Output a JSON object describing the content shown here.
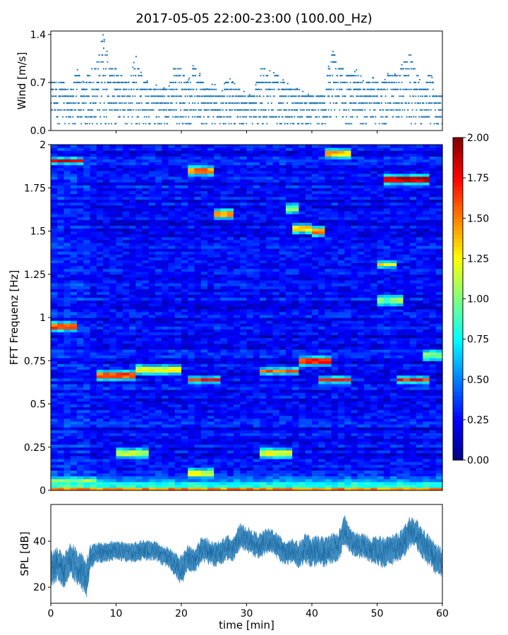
{
  "title": "2017-05-05 22:00-23:00 (100.00_Hz)",
  "chart_data": [
    {
      "type": "scatter",
      "panel": "wind",
      "ylabel": "Wind [m/s]",
      "xlim": [
        0,
        60
      ],
      "ylim": [
        0,
        1.45
      ],
      "yticks": [
        0,
        0.7,
        1.4
      ],
      "ytick_labels": [
        "0.0",
        "0.7",
        "1.4"
      ],
      "y_levels": [
        0.1,
        0.2,
        0.3,
        0.4,
        0.5,
        0.6,
        0.7,
        0.8,
        0.9,
        1.0,
        1.1,
        1.2,
        1.3,
        1.4
      ],
      "envelope": {
        "x": [
          0,
          2,
          3,
          4,
          5,
          6,
          7,
          8,
          9,
          10,
          12,
          13,
          14,
          15,
          18,
          19,
          20,
          21,
          22,
          24,
          25,
          26,
          27,
          28,
          29,
          31,
          32,
          33,
          35,
          36,
          38,
          40,
          42,
          43,
          44,
          45,
          46,
          47,
          48,
          50,
          51,
          52,
          53,
          54,
          55,
          56,
          57,
          58,
          59,
          60
        ],
        "y": [
          0.8,
          0.7,
          0.6,
          0.9,
          0.7,
          0.9,
          1.0,
          1.4,
          1.0,
          0.9,
          0.7,
          1.1,
          0.8,
          0.7,
          0.6,
          1.0,
          0.9,
          0.7,
          1.0,
          0.6,
          0.7,
          0.5,
          0.8,
          0.7,
          0.6,
          0.5,
          0.9,
          0.9,
          0.8,
          0.7,
          0.6,
          0.5,
          0.6,
          1.2,
          1.0,
          0.9,
          0.8,
          0.9,
          0.7,
          0.8,
          0.7,
          0.9,
          0.8,
          1.0,
          1.2,
          0.9,
          0.6,
          0.9,
          0.6,
          0.5
        ]
      },
      "min_envelope": [
        0.1,
        0.0
      ]
    },
    {
      "type": "heatmap",
      "panel": "spectrogram",
      "ylabel": "FFT Frequenz [Hz]",
      "xlim": [
        0,
        60
      ],
      "ylim": [
        0,
        2
      ],
      "yticks": [
        0,
        0.25,
        0.5,
        0.75,
        1,
        1.25,
        1.5,
        1.75,
        2
      ],
      "ytick_labels": [
        "0",
        "0.25",
        "0.5",
        "0.75",
        "1",
        "1.25",
        "1.5",
        "1.75",
        "2"
      ],
      "colormap": "jet",
      "color_range": [
        0,
        2
      ],
      "colorbar_ticks": [
        "0.00",
        "0.25",
        "0.50",
        "0.75",
        "1.00",
        "1.25",
        "1.50",
        "1.75",
        "2.00"
      ],
      "background_level": 0.25,
      "highlights": [
        {
          "t0": 0,
          "t1": 5,
          "f": 1.91,
          "v": 1.8
        },
        {
          "t0": 0,
          "t1": 4,
          "f": 0.95,
          "v": 1.6
        },
        {
          "t0": 0,
          "t1": 60,
          "f": 0.01,
          "v": 1.5
        },
        {
          "t0": 0,
          "t1": 7,
          "f": 0.06,
          "v": 1.1
        },
        {
          "t0": 7,
          "t1": 13,
          "f": 0.67,
          "v": 1.6
        },
        {
          "t0": 13,
          "t1": 20,
          "f": 0.7,
          "v": 1.2
        },
        {
          "t0": 10,
          "t1": 15,
          "f": 0.22,
          "v": 1.1
        },
        {
          "t0": 21,
          "t1": 25,
          "f": 1.85,
          "v": 1.5
        },
        {
          "t0": 21,
          "t1": 26,
          "f": 0.64,
          "v": 1.7
        },
        {
          "t0": 21,
          "t1": 25,
          "f": 0.1,
          "v": 1.2
        },
        {
          "t0": 25,
          "t1": 28,
          "f": 1.6,
          "v": 1.5
        },
        {
          "t0": 32,
          "t1": 38,
          "f": 0.69,
          "v": 1.6
        },
        {
          "t0": 32,
          "t1": 37,
          "f": 0.22,
          "v": 1.2
        },
        {
          "t0": 36,
          "t1": 38,
          "f": 1.63,
          "v": 1.0
        },
        {
          "t0": 37,
          "t1": 40,
          "f": 1.52,
          "v": 1.3
        },
        {
          "t0": 40,
          "t1": 42,
          "f": 1.5,
          "v": 1.5
        },
        {
          "t0": 38,
          "t1": 43,
          "f": 0.75,
          "v": 1.7
        },
        {
          "t0": 41,
          "t1": 46,
          "f": 0.64,
          "v": 1.8
        },
        {
          "t0": 42,
          "t1": 46,
          "f": 1.95,
          "v": 1.4
        },
        {
          "t0": 50,
          "t1": 53,
          "f": 1.31,
          "v": 1.3
        },
        {
          "t0": 50,
          "t1": 54,
          "f": 1.1,
          "v": 1.0
        },
        {
          "t0": 51,
          "t1": 58,
          "f": 1.8,
          "v": 1.9
        },
        {
          "t0": 53,
          "t1": 58,
          "f": 0.64,
          "v": 1.7
        },
        {
          "t0": 57,
          "t1": 60,
          "f": 0.78,
          "v": 1.0
        }
      ]
    },
    {
      "type": "line",
      "panel": "spl",
      "ylabel": "SPL [dB]",
      "xlabel": "time [min]",
      "xlim": [
        0,
        60
      ],
      "ylim": [
        13,
        56
      ],
      "yticks": [
        20,
        40
      ],
      "ytick_labels": [
        "20",
        "40"
      ],
      "xticks": [
        0,
        10,
        20,
        30,
        40,
        50,
        60
      ],
      "xtick_labels": [
        "0",
        "10",
        "20",
        "30",
        "40",
        "50",
        "60"
      ],
      "series": [
        {
          "x": [
            0,
            1,
            2,
            3,
            4,
            5,
            5.5,
            6,
            7,
            8,
            10,
            12,
            14,
            16,
            17,
            18,
            19,
            20,
            21,
            22,
            23,
            24,
            25,
            26,
            27,
            28,
            29,
            30,
            31,
            32,
            33,
            34,
            35,
            36,
            37,
            38,
            39,
            40,
            41,
            42,
            43,
            44,
            45,
            46,
            47,
            48,
            49,
            50,
            51,
            52,
            53,
            54,
            55,
            56,
            57,
            58,
            59,
            60
          ],
          "center": [
            28,
            30,
            27,
            32,
            29,
            26,
            24,
            33,
            35,
            35,
            36,
            35,
            36,
            36,
            34,
            33,
            30,
            27,
            33,
            31,
            36,
            36,
            34,
            35,
            37,
            37,
            42,
            41,
            39,
            38,
            40,
            40,
            37,
            35,
            36,
            34,
            37,
            35,
            36,
            35,
            37,
            37,
            45,
            40,
            38,
            38,
            36,
            36,
            35,
            36,
            37,
            39,
            44,
            43,
            39,
            36,
            32,
            31
          ],
          "spread": [
            7,
            7,
            7,
            7,
            7,
            8,
            8,
            5,
            4,
            4,
            4,
            4,
            4,
            4,
            4,
            4,
            5,
            6,
            5,
            5,
            5,
            5,
            5,
            5,
            5,
            5,
            5,
            5,
            5,
            5,
            5,
            5,
            5,
            5,
            5,
            5,
            6,
            6,
            6,
            6,
            6,
            6,
            6,
            5,
            5,
            5,
            5,
            6,
            6,
            6,
            6,
            6,
            6,
            6,
            6,
            6,
            6,
            6
          ]
        }
      ]
    }
  ]
}
